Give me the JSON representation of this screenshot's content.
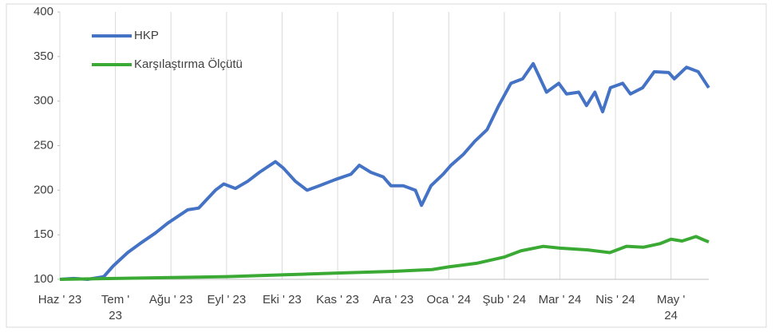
{
  "chart_data": {
    "type": "line",
    "xlim": [
      0,
      11.68
    ],
    "xticks": [
      {
        "value": 0,
        "label": "Haz ' 23"
      },
      {
        "value": 1,
        "label": "Tem ' 23"
      },
      {
        "value": 2,
        "label": "Ağu ' 23"
      },
      {
        "value": 3,
        "label": "Eyl ' 23"
      },
      {
        "value": 4,
        "label": "Eki ' 23"
      },
      {
        "value": 5,
        "label": "Kas ' 23"
      },
      {
        "value": 6,
        "label": "Ara ' 23"
      },
      {
        "value": 7,
        "label": "Oca ' 24"
      },
      {
        "value": 8,
        "label": "Şub ' 24"
      },
      {
        "value": 9,
        "label": "Mar ' 24"
      },
      {
        "value": 10,
        "label": "Nis ' 24"
      },
      {
        "value": 11,
        "label": "May ' 24"
      }
    ],
    "ylim": [
      100,
      400
    ],
    "yticks": [
      100,
      150,
      200,
      250,
      300,
      350,
      400
    ],
    "grid": "x",
    "legend": "upper-left",
    "series": [
      {
        "name": "HKP",
        "color": "#4472c4",
        "x": [
          0,
          0.25,
          0.5,
          0.79,
          0.96,
          1.22,
          1.44,
          1.72,
          1.94,
          2.3,
          2.5,
          2.8,
          2.95,
          3.16,
          3.38,
          3.59,
          3.88,
          4.02,
          4.24,
          4.45,
          4.67,
          4.96,
          5.24,
          5.39,
          5.6,
          5.82,
          5.96,
          6.18,
          6.4,
          6.51,
          6.68,
          6.9,
          7.04,
          7.26,
          7.47,
          7.69,
          7.9,
          8.12,
          8.33,
          8.52,
          8.76,
          8.98,
          9.12,
          9.34,
          9.48,
          9.63,
          9.77,
          9.91,
          10.13,
          10.27,
          10.49,
          10.7,
          10.96,
          11.06,
          11.28,
          11.49,
          11.68
        ],
        "values": [
          100,
          101,
          100,
          103,
          115,
          130,
          140,
          152,
          163,
          178,
          180,
          200,
          207,
          202,
          210,
          220,
          232,
          225,
          210,
          200,
          205,
          212,
          218,
          228,
          220,
          215,
          205,
          205,
          200,
          183,
          205,
          218,
          228,
          240,
          255,
          268,
          295,
          320,
          325,
          342,
          310,
          320,
          308,
          310,
          295,
          310,
          288,
          315,
          320,
          308,
          315,
          333,
          332,
          325,
          338,
          333,
          315
        ]
      },
      {
        "name": "Karşılaştırma Ölçütü",
        "color": "#3aaa35",
        "x": [
          0,
          1,
          2,
          3,
          4,
          5,
          6,
          6.7,
          7,
          7.5,
          8,
          8.3,
          8.7,
          9,
          9.5,
          9.9,
          10.2,
          10.5,
          10.8,
          11,
          11.2,
          11.45,
          11.6,
          11.68
        ],
        "values": [
          100,
          101,
          102,
          103,
          105,
          107,
          109,
          111,
          114,
          118,
          125,
          132,
          137,
          135,
          133,
          130,
          137,
          136,
          140,
          145,
          143,
          148,
          144,
          142
        ]
      }
    ]
  }
}
